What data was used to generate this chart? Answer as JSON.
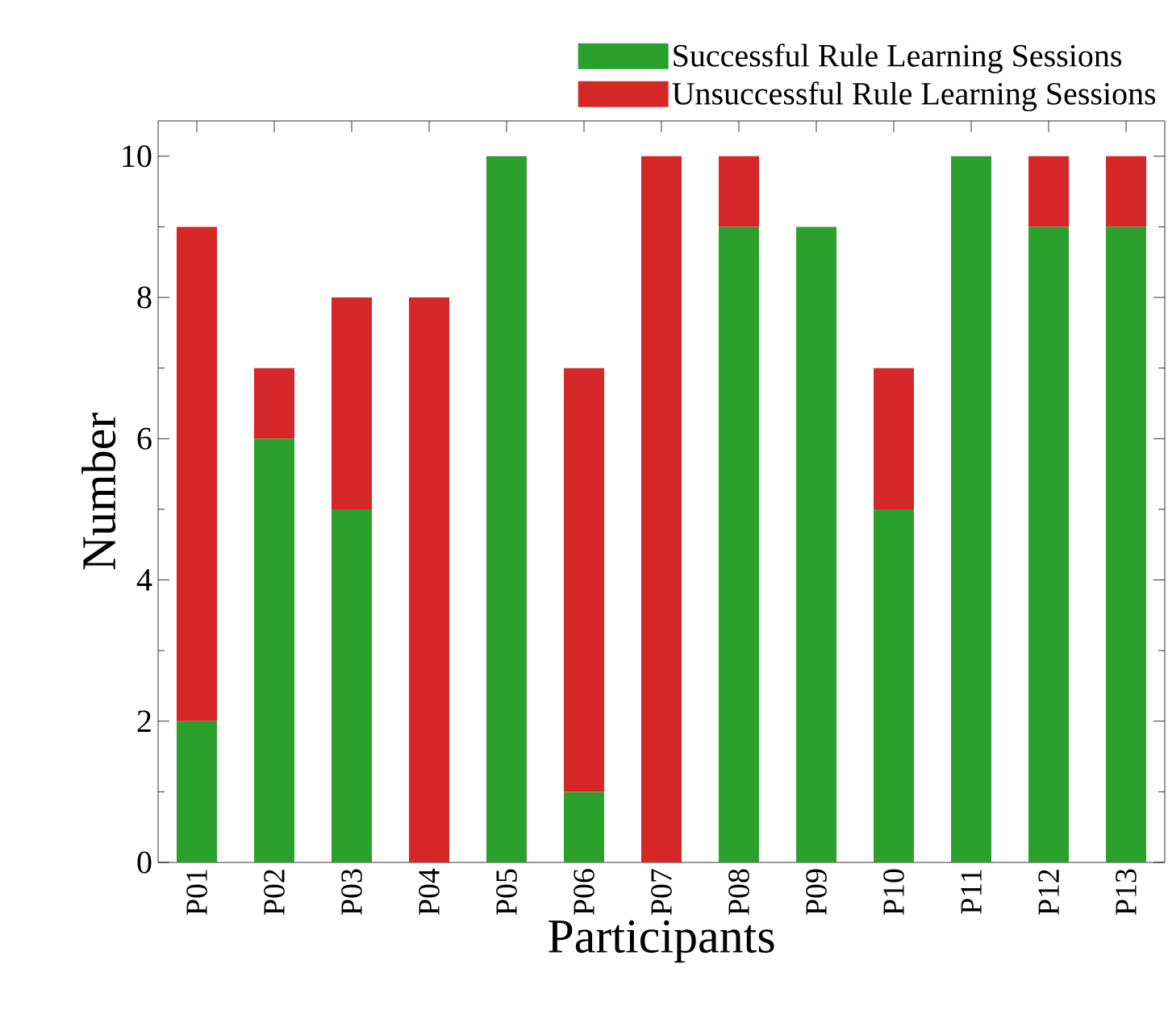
{
  "chart_data": {
    "type": "bar",
    "stacked": true,
    "xlabel": "Participants",
    "ylabel": "Number",
    "legend": "top right",
    "categories": [
      "P01",
      "P02",
      "P03",
      "P04",
      "P05",
      "P06",
      "P07",
      "P08",
      "P09",
      "P10",
      "P11",
      "P12",
      "P13"
    ],
    "series": [
      {
        "name": "Successful Rule Learning Sessions",
        "color": "#2ca02c",
        "values": [
          2,
          6,
          5,
          0,
          10,
          1,
          0,
          9,
          9,
          5,
          10,
          9,
          9
        ]
      },
      {
        "name": "Unsuccessful Rule Learning Sessions",
        "color": "#d62728",
        "values": [
          7,
          1,
          3,
          8,
          0,
          6,
          10,
          1,
          0,
          2,
          0,
          1,
          1
        ]
      }
    ],
    "ylim": [
      0,
      10.5
    ],
    "yticks": [
      0,
      2,
      4,
      6,
      8,
      10
    ]
  }
}
